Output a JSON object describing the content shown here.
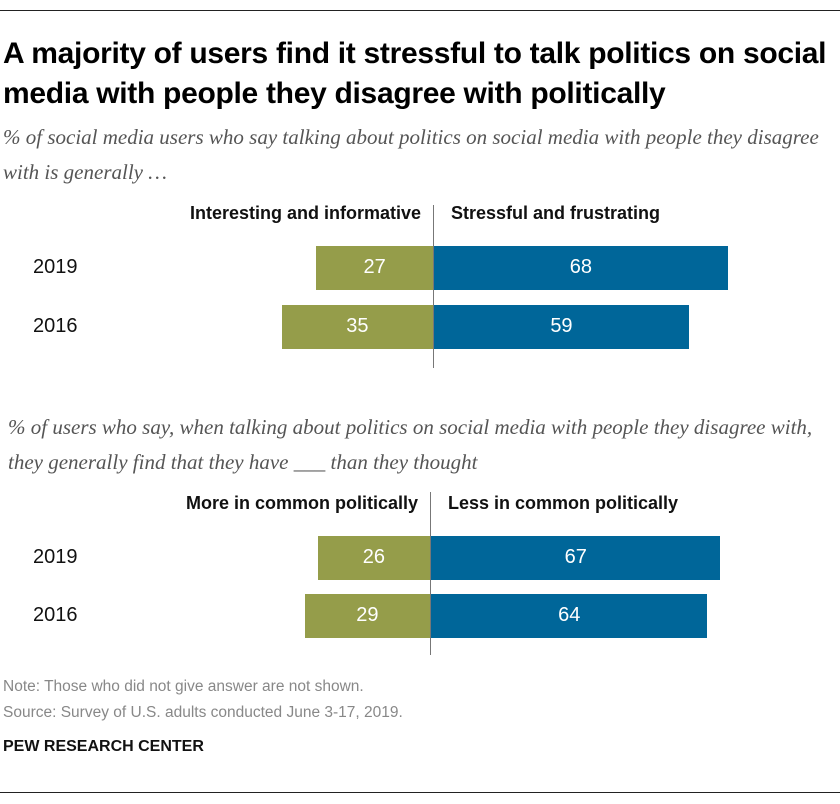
{
  "title": "A majority of users find it stressful to talk politics on social media with people they disagree with politically",
  "colors": {
    "left": "#959d4a",
    "right": "#006699"
  },
  "chart_data": [
    {
      "type": "bar",
      "orientation": "diverging-horizontal",
      "subtitle": "% of social media users who say talking about politics on social media with people they disagree with is generally …",
      "categories": [
        "2019",
        "2016"
      ],
      "series": [
        {
          "name": "Interesting and informative",
          "values": [
            27,
            35
          ]
        },
        {
          "name": "Stressful and frustrating",
          "values": [
            68,
            59
          ]
        }
      ]
    },
    {
      "type": "bar",
      "orientation": "diverging-horizontal",
      "subtitle": "% of users who say, when talking about politics on social media with people they disagree with, they generally find that they have ___ than they thought",
      "categories": [
        "2019",
        "2016"
      ],
      "series": [
        {
          "name": "More in common politically",
          "values": [
            26,
            29
          ]
        },
        {
          "name": "Less in common politically",
          "values": [
            67,
            64
          ]
        }
      ]
    }
  ],
  "note": "Note: Those who did not give answer are not shown.",
  "source": "Source: Survey of U.S. adults conducted June 3-17, 2019.",
  "brand": "PEW RESEARCH CENTER"
}
